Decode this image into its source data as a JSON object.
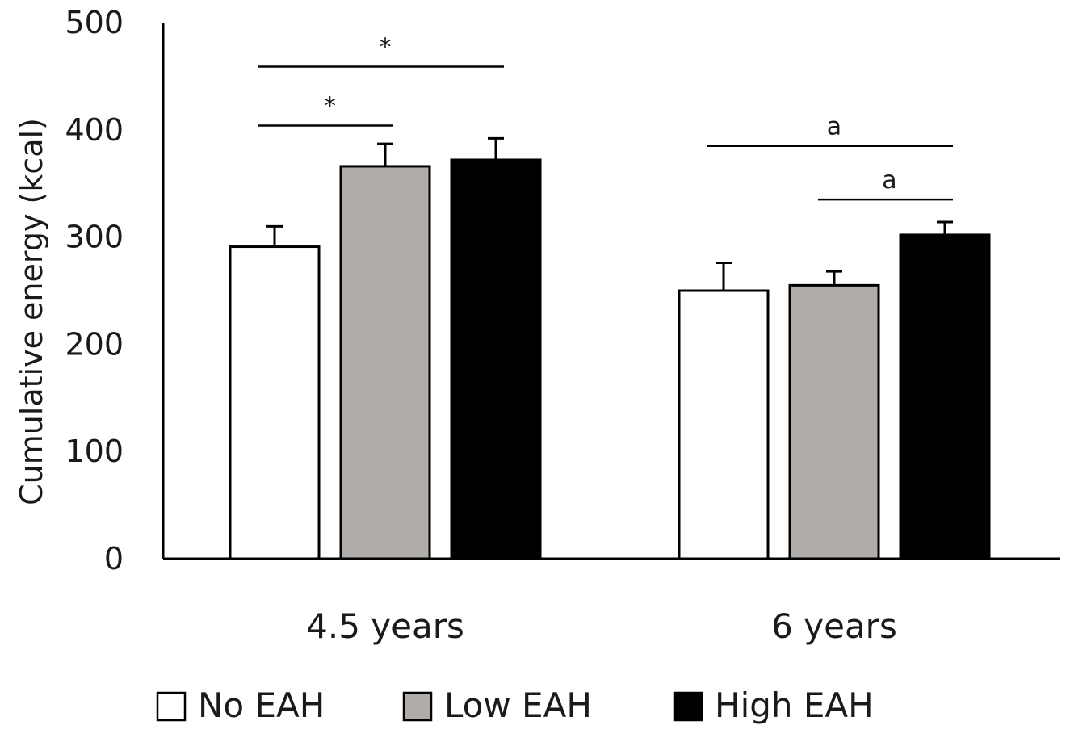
{
  "chart_data": {
    "type": "bar",
    "ylabel": "Cumulative energy (kcal)",
    "xlabel": "",
    "ylim": [
      0,
      500
    ],
    "yticks": [
      0,
      100,
      200,
      300,
      400,
      500
    ],
    "categories": [
      "4.5 years",
      "6 years"
    ],
    "series": [
      {
        "name": "No EAH",
        "values": [
          291,
          250
        ],
        "errors": [
          19,
          26
        ],
        "color": "#ffffff"
      },
      {
        "name": "Low EAH",
        "values": [
          366,
          255
        ],
        "errors": [
          21,
          13
        ],
        "color": "#b0aca9"
      },
      {
        "name": "High EAH",
        "values": [
          372,
          302
        ],
        "errors": [
          20,
          12
        ],
        "color": "#000000"
      }
    ],
    "significance": [
      {
        "category": 0,
        "from_series": 0,
        "to_series": 1,
        "label": "*",
        "y": 404
      },
      {
        "category": 0,
        "from_series": 0,
        "to_series": 2,
        "label": "*",
        "y": 459
      },
      {
        "category": 1,
        "from_series": 0,
        "to_series": 2,
        "label": "a",
        "y": 385
      },
      {
        "category": 1,
        "from_series": 1,
        "to_series": 2,
        "label": "a",
        "y": 335
      }
    ],
    "legend_position": "bottom",
    "grid": false
  }
}
